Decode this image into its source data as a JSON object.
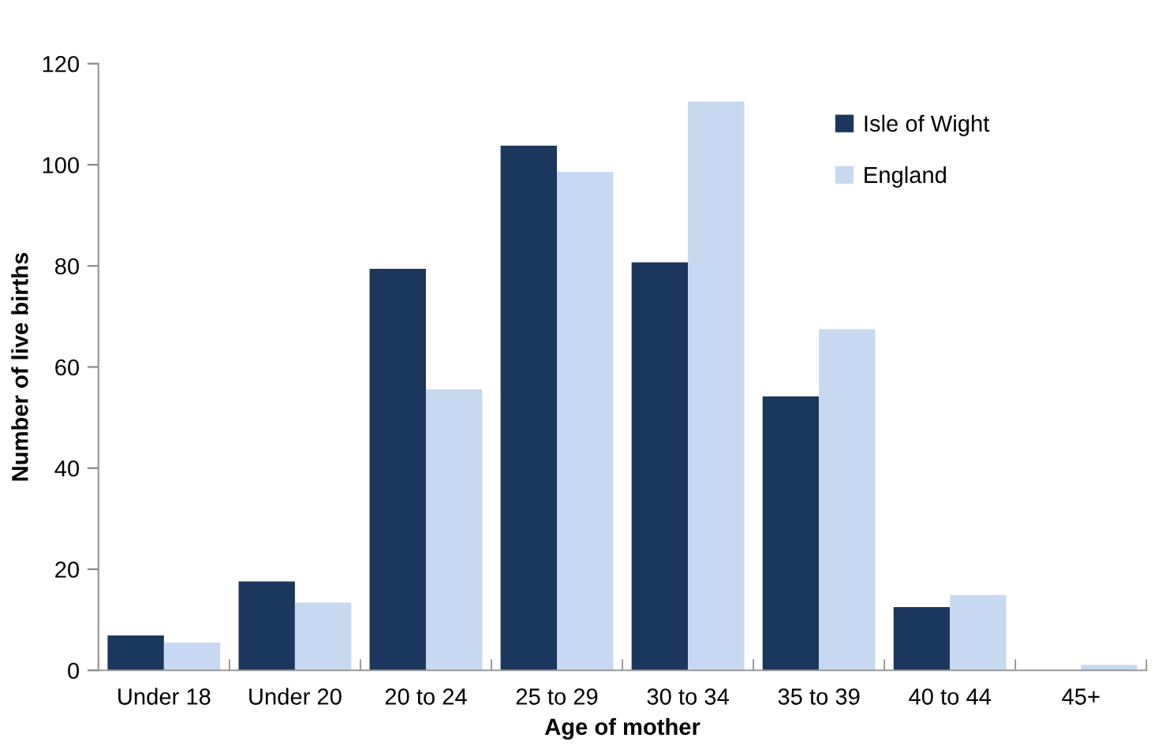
{
  "chart_data": {
    "type": "bar",
    "xlabel": "Age of mother",
    "ylabel": "Number of live births",
    "categories": [
      "Under 18",
      "Under 20",
      "20 to 24",
      "25 to 29",
      "30 to 34",
      "35 to 39",
      "40 to 44",
      "45+"
    ],
    "series": [
      {
        "name": "Isle of Wight",
        "color": "#1b375e",
        "values": [
          6.9,
          17.6,
          79.4,
          103.8,
          80.7,
          54.2,
          12.5,
          0
        ]
      },
      {
        "name": "England",
        "color": "#c6d9f0",
        "values": [
          5.5,
          13.4,
          55.6,
          98.6,
          112.5,
          67.5,
          14.9,
          1.1
        ]
      }
    ],
    "ylim": [
      0,
      120
    ],
    "yticks": [
      0,
      20,
      40,
      60,
      80,
      100,
      120
    ],
    "grid": false,
    "legend": "top right"
  }
}
